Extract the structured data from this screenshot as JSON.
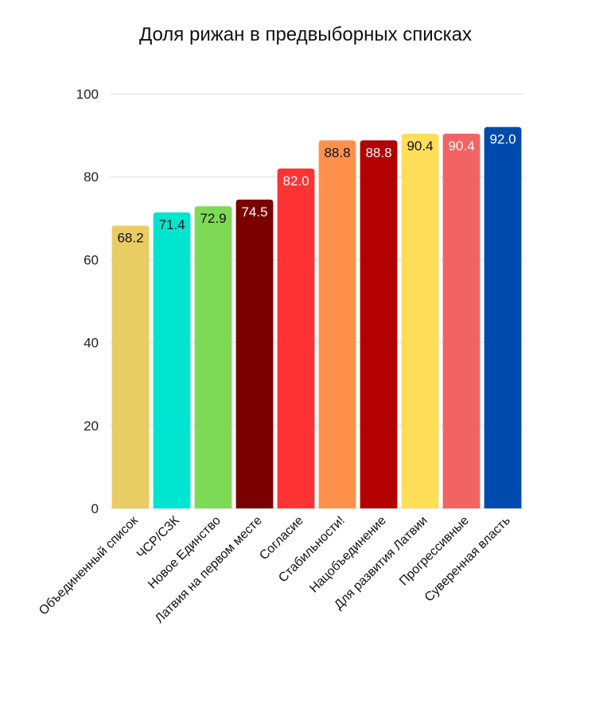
{
  "chart_data": {
    "type": "bar",
    "title": "Доля рижан в предвыборных списках",
    "xlabel": "",
    "ylabel": "",
    "ylim": [
      0,
      100
    ],
    "yticks": [
      0,
      20,
      40,
      60,
      80,
      100
    ],
    "grid": true,
    "categories": [
      "Объединенный список",
      "ЧСР/СЗК",
      "Новое Единство",
      "Латвия на первом месте",
      "Согласие",
      "Стабильности!",
      "Нацобъединение",
      "Для развития Латвии",
      "Прогрессивные",
      "Суверенная власть"
    ],
    "values": [
      68.2,
      71.4,
      72.9,
      74.5,
      82.0,
      88.8,
      88.8,
      90.4,
      90.4,
      92.0
    ],
    "value_labels": [
      "68.2",
      "71.4",
      "72.9",
      "74.5",
      "82.0",
      "88.8",
      "88.8",
      "90.4",
      "90.4",
      "92.0"
    ],
    "colors": [
      "#e8cc64",
      "#00e5cf",
      "#7ed957",
      "#7a0000",
      "#fe3434",
      "#ff914d",
      "#b30000",
      "#ffde59",
      "#f26464",
      "#004aad"
    ],
    "label_colors": [
      "#111111",
      "#111111",
      "#111111",
      "#ffffff",
      "#ffffff",
      "#111111",
      "#ffffff",
      "#111111",
      "#ffffff",
      "#ffffff"
    ]
  }
}
